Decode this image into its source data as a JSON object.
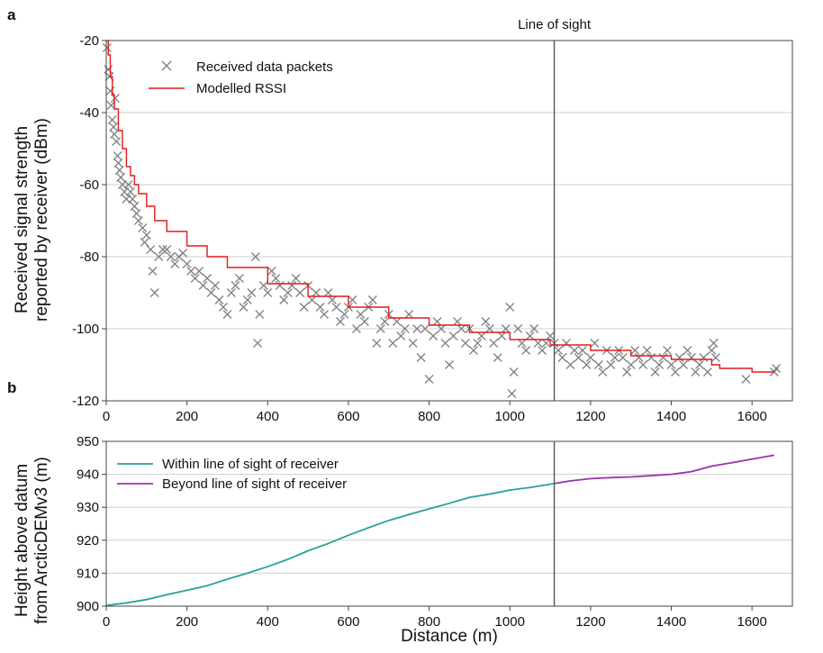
{
  "figure": {
    "x_axis_label": "Distance (m)",
    "line_of_sight_label": "Line of sight",
    "line_of_sight_x": 1110
  },
  "chart_data": [
    {
      "panel": "a",
      "type": "scatter",
      "ylabel_lines": [
        "Received signal strength",
        "reported by receiver (dBm)"
      ],
      "xlim": [
        0,
        1700
      ],
      "ylim": [
        -120,
        -20
      ],
      "x_ticks": [
        0,
        200,
        400,
        600,
        800,
        1000,
        1200,
        1400,
        1600
      ],
      "y_ticks": [
        -20,
        -40,
        -60,
        -80,
        -100,
        -120
      ],
      "grid": "horizontal",
      "legend_position": "top-left",
      "series": [
        {
          "name": "Received data packets",
          "kind": "scatter",
          "marker": "x",
          "color": "#808080",
          "x": [
            2,
            5,
            8,
            10,
            12,
            15,
            18,
            20,
            22,
            25,
            28,
            30,
            33,
            36,
            40,
            45,
            50,
            55,
            60,
            65,
            70,
            75,
            80,
            90,
            95,
            100,
            110,
            115,
            120,
            130,
            140,
            150,
            160,
            170,
            180,
            190,
            200,
            210,
            220,
            230,
            240,
            250,
            260,
            270,
            280,
            290,
            300,
            310,
            320,
            330,
            340,
            350,
            360,
            370,
            375,
            380,
            390,
            400,
            410,
            420,
            430,
            440,
            450,
            460,
            470,
            480,
            490,
            500,
            510,
            520,
            530,
            540,
            550,
            560,
            570,
            580,
            590,
            600,
            610,
            620,
            630,
            640,
            650,
            660,
            670,
            680,
            690,
            700,
            710,
            720,
            730,
            740,
            750,
            760,
            770,
            780,
            790,
            800,
            810,
            820,
            830,
            840,
            850,
            860,
            870,
            880,
            890,
            900,
            910,
            920,
            930,
            940,
            950,
            960,
            970,
            980,
            990,
            1000,
            1005,
            1010,
            1020,
            1030,
            1040,
            1050,
            1060,
            1070,
            1080,
            1090,
            1100,
            1110,
            1120,
            1130,
            1140,
            1150,
            1160,
            1170,
            1180,
            1190,
            1200,
            1210,
            1220,
            1230,
            1240,
            1250,
            1260,
            1270,
            1280,
            1290,
            1300,
            1310,
            1320,
            1330,
            1340,
            1350,
            1360,
            1370,
            1380,
            1390,
            1400,
            1410,
            1420,
            1430,
            1440,
            1450,
            1460,
            1470,
            1480,
            1490,
            1500,
            1505,
            1510,
            1585,
            1655,
            1660
          ],
          "y": [
            -22,
            -28,
            -30,
            -34,
            -38,
            -42,
            -44,
            -46,
            -36,
            -48,
            -52,
            -54,
            -56,
            -58,
            -60,
            -62,
            -64,
            -60,
            -62,
            -64,
            -66,
            -68,
            -70,
            -72,
            -76,
            -74,
            -78,
            -84,
            -90,
            -80,
            -78,
            -78,
            -80,
            -82,
            -80,
            -79,
            -82,
            -84,
            -86,
            -84,
            -88,
            -86,
            -90,
            -88,
            -92,
            -94,
            -96,
            -90,
            -88,
            -86,
            -94,
            -92,
            -90,
            -80,
            -104,
            -96,
            -88,
            -90,
            -84,
            -86,
            -88,
            -92,
            -90,
            -88,
            -86,
            -90,
            -94,
            -88,
            -92,
            -90,
            -94,
            -96,
            -90,
            -92,
            -94,
            -98,
            -96,
            -94,
            -92,
            -100,
            -96,
            -98,
            -94,
            -92,
            -104,
            -100,
            -98,
            -96,
            -104,
            -98,
            -102,
            -100,
            -96,
            -104,
            -100,
            -108,
            -100,
            -114,
            -102,
            -98,
            -100,
            -104,
            -110,
            -102,
            -98,
            -100,
            -104,
            -100,
            -106,
            -104,
            -102,
            -98,
            -100,
            -104,
            -108,
            -102,
            -100,
            -94,
            -118,
            -112,
            -100,
            -104,
            -106,
            -102,
            -100,
            -104,
            -106,
            -104,
            -102,
            -104,
            -106,
            -108,
            -104,
            -110,
            -106,
            -108,
            -106,
            -110,
            -108,
            -104,
            -110,
            -112,
            -106,
            -110,
            -108,
            -106,
            -108,
            -112,
            -110,
            -106,
            -108,
            -110,
            -106,
            -108,
            -112,
            -110,
            -108,
            -106,
            -110,
            -112,
            -108,
            -110,
            -106,
            -108,
            -112,
            -110,
            -108,
            -112,
            -106,
            -104,
            -108,
            -114,
            -112,
            -111
          ]
        },
        {
          "name": "Modelled RSSI",
          "kind": "line",
          "color": "#e41a1c",
          "x": [
            0,
            5,
            10,
            15,
            20,
            30,
            40,
            50,
            60,
            70,
            80,
            100,
            120,
            150,
            200,
            250,
            300,
            400,
            500,
            600,
            700,
            800,
            900,
            1000,
            1100,
            1200,
            1300,
            1400,
            1500,
            1520,
            1580,
            1600,
            1655
          ],
          "y": [
            -20,
            -24,
            -30,
            -35,
            -39,
            -45,
            -50,
            -55,
            -57.5,
            -60,
            -62.5,
            -66,
            -70,
            -73,
            -77,
            -80,
            -83,
            -87.5,
            -91,
            -94,
            -97,
            -99,
            -101,
            -103,
            -104.5,
            -106,
            -107.5,
            -108.5,
            -110,
            -111,
            -111,
            -112,
            -112
          ]
        }
      ]
    },
    {
      "panel": "b",
      "type": "line",
      "ylabel_lines": [
        "Height above datum",
        "from ArcticDEMv3 (m)"
      ],
      "xlim": [
        0,
        1700
      ],
      "ylim": [
        900,
        950
      ],
      "x_ticks": [
        0,
        200,
        400,
        600,
        800,
        1000,
        1200,
        1400,
        1600
      ],
      "y_ticks": [
        900,
        910,
        920,
        930,
        940,
        950
      ],
      "grid": "horizontal",
      "legend_position": "top-left",
      "series": [
        {
          "name": "Within line of sight of receiver",
          "color": "#2aa198",
          "x": [
            0,
            50,
            100,
            150,
            200,
            250,
            300,
            350,
            400,
            450,
            500,
            550,
            600,
            650,
            700,
            750,
            800,
            850,
            900,
            950,
            1000,
            1050,
            1110
          ],
          "y": [
            900.2,
            901,
            902,
            903.5,
            904.8,
            906.2,
            908.2,
            910,
            912,
            914.2,
            916.8,
            919,
            921.5,
            923.8,
            926,
            927.8,
            929.5,
            931.2,
            933,
            934,
            935.2,
            936,
            937.2
          ]
        },
        {
          "name": "Beyond line of sight of receiver",
          "color": "#9b30b0",
          "x": [
            1110,
            1150,
            1200,
            1250,
            1300,
            1350,
            1400,
            1450,
            1500,
            1550,
            1600,
            1655
          ],
          "y": [
            937.2,
            938,
            938.7,
            939,
            939.2,
            939.6,
            940,
            940.8,
            942.5,
            943.5,
            944.6,
            945.8
          ]
        }
      ]
    }
  ]
}
